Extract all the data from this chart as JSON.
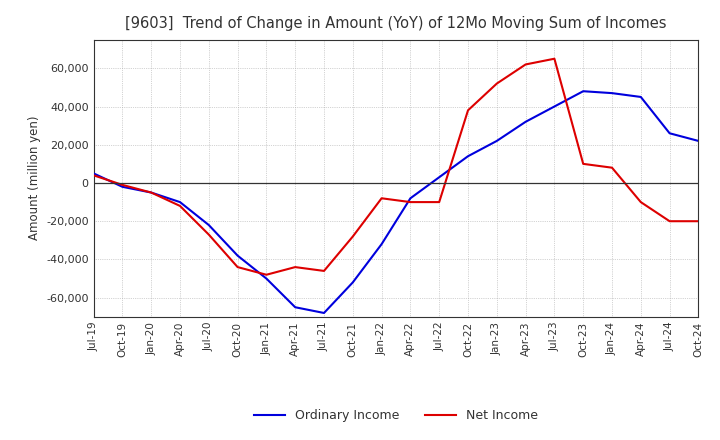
{
  "title": "[9603]  Trend of Change in Amount (YoY) of 12Mo Moving Sum of Incomes",
  "ylabel": "Amount (million yen)",
  "ylim": [
    -70000,
    75000
  ],
  "yticks": [
    -60000,
    -40000,
    -20000,
    0,
    20000,
    40000,
    60000
  ],
  "background_color": "#ffffff",
  "grid_color": "#aaaaaa",
  "ordinary_income_color": "#0000dd",
  "net_income_color": "#dd0000",
  "line_width": 1.5,
  "x_labels": [
    "Jul-19",
    "Oct-19",
    "Jan-20",
    "Apr-20",
    "Jul-20",
    "Oct-20",
    "Jan-21",
    "Apr-21",
    "Jul-21",
    "Oct-21",
    "Jan-22",
    "Apr-22",
    "Jul-22",
    "Oct-22",
    "Jan-23",
    "Apr-23",
    "Jul-23",
    "Oct-23",
    "Jan-24",
    "Apr-24",
    "Jul-24",
    "Oct-24"
  ],
  "ordinary_income": [
    5000,
    -2000,
    -5000,
    -10000,
    -22000,
    -38000,
    -50000,
    -65000,
    -68000,
    -52000,
    -32000,
    -8000,
    3000,
    14000,
    22000,
    32000,
    40000,
    48000,
    47000,
    45000,
    26000,
    22000
  ],
  "net_income": [
    4000,
    -1000,
    -5000,
    -12000,
    -27000,
    -44000,
    -48000,
    -44000,
    -46000,
    -28000,
    -8000,
    -10000,
    -10000,
    38000,
    52000,
    62000,
    65000,
    10000,
    8000,
    -10000,
    -20000,
    -20000
  ]
}
